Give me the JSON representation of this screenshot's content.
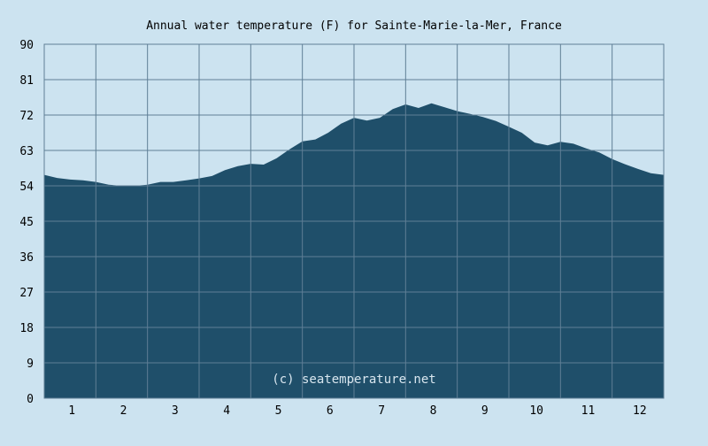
{
  "chart_data": {
    "type": "area",
    "title": "Annual water temperature (F) for Sainte-Marie-la-Mer, France",
    "watermark": "(c) seatemperature.net",
    "xlabel": "",
    "ylabel": "",
    "x_ticks": [
      "1",
      "2",
      "3",
      "4",
      "5",
      "6",
      "7",
      "8",
      "9",
      "10",
      "11",
      "12"
    ],
    "y_ticks": [
      "0",
      "9",
      "18",
      "27",
      "36",
      "45",
      "54",
      "63",
      "72",
      "81",
      "90"
    ],
    "xlim": [
      0.5,
      12.5
    ],
    "ylim": [
      0,
      90
    ],
    "grid": true,
    "colors": {
      "area": "#1f4f6a",
      "background": "#cce3f0",
      "grid": "#5f7f96"
    },
    "series": [
      {
        "x": [
          0.5,
          0.75,
          1.0,
          1.25,
          1.5,
          1.75,
          2.0,
          2.25,
          2.5,
          2.75,
          3.0,
          3.25,
          3.5,
          3.75,
          4.0,
          4.25,
          4.5,
          4.75,
          5.0,
          5.25,
          5.5,
          5.75,
          6.0,
          6.25,
          6.5,
          6.75,
          7.0,
          7.25,
          7.5,
          7.75,
          8.0,
          8.25,
          8.5,
          8.75,
          9.0,
          9.25,
          9.5,
          9.75,
          10.0,
          10.25,
          10.5,
          10.75,
          11.0,
          11.25,
          11.5,
          11.75,
          12.0,
          12.25,
          12.5
        ],
        "values": [
          56.8,
          56.0,
          55.6,
          55.4,
          55.0,
          54.3,
          54.0,
          54.0,
          54.3,
          55.0,
          55.0,
          55.4,
          55.9,
          56.5,
          58.0,
          59.0,
          59.6,
          59.4,
          61.0,
          63.3,
          65.3,
          65.8,
          67.5,
          69.8,
          71.3,
          70.6,
          71.3,
          73.5,
          74.7,
          73.8,
          75.0,
          74.0,
          73.0,
          72.3,
          71.5,
          70.5,
          69.0,
          67.5,
          65.0,
          64.3,
          65.2,
          64.7,
          63.5,
          62.5,
          60.8,
          59.5,
          58.3,
          57.2,
          56.8
        ]
      }
    ]
  }
}
